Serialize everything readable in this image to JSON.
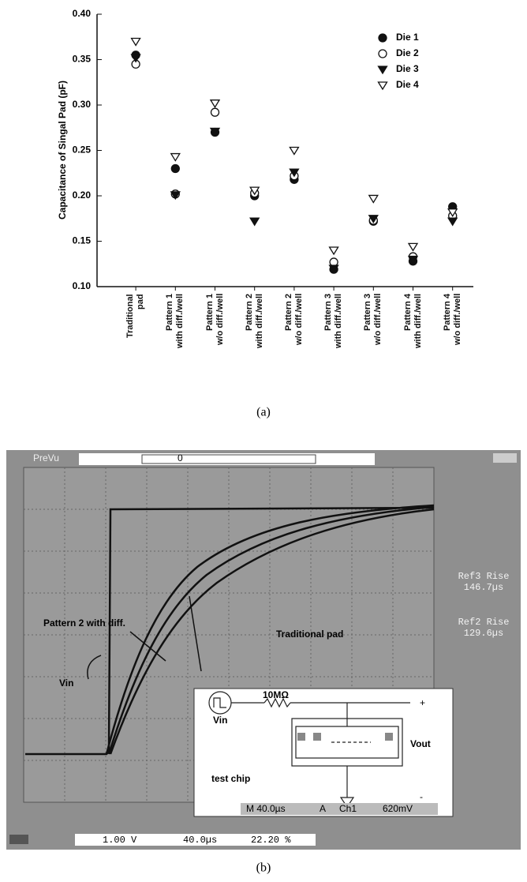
{
  "chart_data": {
    "type": "scatter",
    "y_label": "Capacitance of Singal Pad  (pF)",
    "categories": [
      "Traditional\npad",
      "Pattern 1\nwith diff./well",
      "Pattern 1\nw/o diff./well",
      "Pattern 2\nwith diff./well",
      "Pattern 2\nw/o diff./well",
      "Pattern 3\nwith diff./well",
      "Pattern 3\nw/o diff./well",
      "Pattern 4\nwith diff./well",
      "Pattern 4\nw/o diff./well"
    ],
    "series": [
      {
        "name": "Die 1",
        "color": "#111111",
        "marker": "circle",
        "values": [
          0.355,
          0.23,
          0.27,
          0.2,
          0.218,
          0.119,
          0.172,
          0.128,
          0.188
        ]
      },
      {
        "name": "Die 2",
        "color": "#111111",
        "marker": "circle-open",
        "values": [
          0.345,
          0.202,
          0.292,
          0.203,
          0.222,
          0.127,
          0.173,
          0.133,
          0.178
        ]
      },
      {
        "name": "Die 3",
        "color": "#111111",
        "marker": "triangle-down",
        "values": [
          0.352,
          0.201,
          0.271,
          0.172,
          0.226,
          0.12,
          0.175,
          0.13,
          0.172
        ]
      },
      {
        "name": "Die 4",
        "color": "#111111",
        "marker": "triangle-down-open",
        "values": [
          0.37,
          0.243,
          0.302,
          0.206,
          0.25,
          0.14,
          0.197,
          0.144,
          0.182
        ]
      }
    ],
    "ylim": [
      0.1,
      0.4
    ],
    "yticks": [
      {
        "value": 0.1,
        "label": "0.10"
      },
      0.15,
      {
        "value": 0.2,
        "label": "0.20"
      },
      0.25,
      {
        "value": 0.3,
        "label": "0.30"
      },
      0.35,
      {
        "value": 0.4,
        "label": "0.40"
      }
    ],
    "legend": "upper right"
  },
  "captions": {
    "a": "(a)",
    "b": "(b)"
  },
  "scope": {
    "top_label": "PreVu",
    "top_marker": "0",
    "annotations": {
      "pattern2": "Pattern 2 with diff.",
      "traditional": "Traditional pad",
      "vin": "Vin"
    },
    "ref3": {
      "label": "Ref3 Rise",
      "value": "146.7µs"
    },
    "ref2": {
      "label": "Ref2 Rise",
      "value": "129.6µs"
    },
    "inset": {
      "resistor": "10MΩ",
      "source": "Vin",
      "output": "Vout",
      "chip": "test chip",
      "plus": "+",
      "minus": "-"
    },
    "status": {
      "timebase": "M 40.0µs",
      "trigger": "A",
      "channel": "Ch1",
      "level": "620mV"
    },
    "bottom": {
      "scale": "1.00 V",
      "time": "40.0µs",
      "percent": "22.20 %"
    }
  }
}
